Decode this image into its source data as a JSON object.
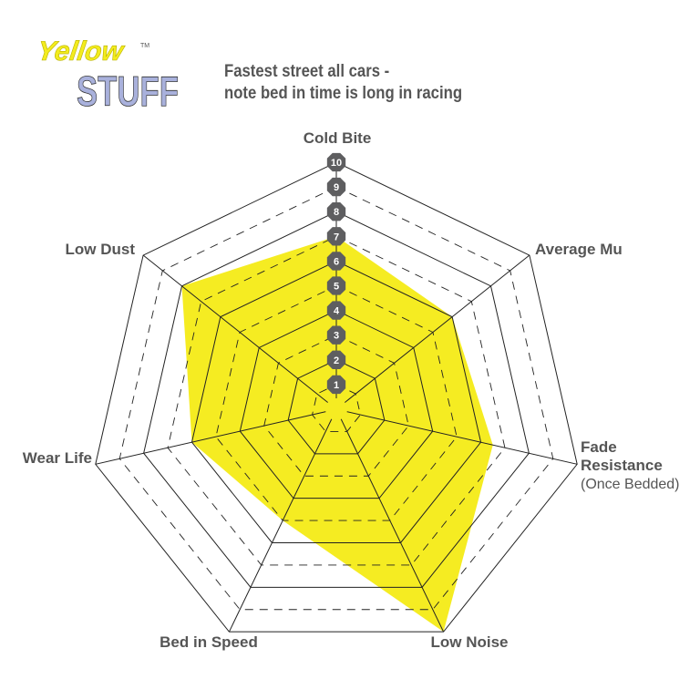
{
  "logo": {
    "text_top": "Yellow",
    "text_bottom": "STUFF",
    "tm": "TM"
  },
  "subtitle_lines": [
    "Fastest street all cars -",
    "note bed in time is long in racing"
  ],
  "chart_data": {
    "type": "radar",
    "axes": [
      {
        "label": "Cold Bite",
        "sub": ""
      },
      {
        "label": "Average Mu",
        "sub": ""
      },
      {
        "label": "Fade Resistance",
        "sub": "(Once Bedded)"
      },
      {
        "label": "Low Noise",
        "sub": ""
      },
      {
        "label": "Bed in Speed",
        "sub": ""
      },
      {
        "label": "Wear Life",
        "sub": ""
      },
      {
        "label": "Low Dust",
        "sub": ""
      }
    ],
    "values": [
      7,
      6,
      6.5,
      10,
      5,
      6,
      8
    ],
    "range": [
      0,
      10
    ],
    "tick_labels": [
      "1",
      "2",
      "3",
      "4",
      "5",
      "6",
      "7",
      "8",
      "9",
      "10"
    ],
    "fill_color": "#f5ec22",
    "tick_badge_color": "#5e5e60",
    "grid": "solid at even levels, dashed at odd levels"
  }
}
